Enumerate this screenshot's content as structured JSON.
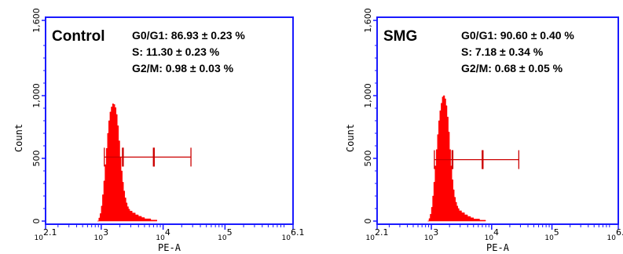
{
  "chart_data": [
    {
      "type": "histogram",
      "panel_label": "Control",
      "stats": [
        "G0/G1: 86.93 ± 0.23 %",
        "S: 11.30 ± 0.23 %",
        "G2/M: 0.98 ± 0.03 %"
      ],
      "xlabel": "PE-A",
      "ylabel": "Count",
      "x_scale": "log",
      "xlim": [
        2.1,
        6.1
      ],
      "ylim": [
        0,
        1600
      ],
      "y_ticks": [
        "0",
        "500",
        "1,000",
        "1,600"
      ],
      "x_ticks": [
        {
          "value": 2.1,
          "base": "10",
          "exp": "2.1"
        },
        {
          "value": 3,
          "base": "10",
          "exp": "3"
        },
        {
          "value": 4,
          "base": "10",
          "exp": "4"
        },
        {
          "value": 5,
          "base": "10",
          "exp": "5"
        },
        {
          "value": 6.1,
          "base": "10",
          "exp": "6.1"
        }
      ],
      "histogram": {
        "x": [
          2.94,
          2.96,
          2.98,
          3.0,
          3.02,
          3.04,
          3.06,
          3.08,
          3.1,
          3.12,
          3.14,
          3.16,
          3.18,
          3.2,
          3.22,
          3.24,
          3.26,
          3.28,
          3.3,
          3.32,
          3.34,
          3.36,
          3.38,
          3.4,
          3.42,
          3.44,
          3.46,
          3.5,
          3.55,
          3.6,
          3.65,
          3.7,
          3.8,
          3.9
        ],
        "counts": [
          0,
          25,
          60,
          120,
          210,
          320,
          450,
          580,
          700,
          800,
          870,
          910,
          935,
          930,
          905,
          850,
          760,
          640,
          510,
          400,
          310,
          240,
          185,
          145,
          115,
          95,
          80,
          65,
          50,
          38,
          28,
          18,
          8,
          0
        ]
      },
      "gates": [
        {
          "name": "G0/G1",
          "x_start": 3.05,
          "x_end": 3.35
        },
        {
          "name": "S",
          "x_start": 3.35,
          "x_end": 3.85
        },
        {
          "name": "G2/M",
          "x_start": 3.85,
          "x_end": 4.45
        }
      ],
      "gate_y": 510,
      "colors": {
        "frame": "#1a1aff",
        "fill": "#ff0000",
        "gate": "#cc0000"
      }
    },
    {
      "type": "histogram",
      "panel_label": "SMG",
      "stats": [
        "G0/G1: 90.60 ± 0.40 %",
        "S: 7.18 ± 0.34 %",
        "G2/M: 0.68 ± 0.05 %"
      ],
      "xlabel": "PE-A",
      "ylabel": "Count",
      "x_scale": "log",
      "xlim": [
        2.1,
        6.1
      ],
      "ylim": [
        0,
        1600
      ],
      "y_ticks": [
        "0",
        "500",
        "1,000",
        "1,600"
      ],
      "x_ticks": [
        {
          "value": 2.1,
          "base": "10",
          "exp": "2.1"
        },
        {
          "value": 3,
          "base": "10",
          "exp": "3"
        },
        {
          "value": 4,
          "base": "10",
          "exp": "4"
        },
        {
          "value": 5,
          "base": "10",
          "exp": "5"
        },
        {
          "value": 6.1,
          "base": "10",
          "exp": "6.1"
        }
      ],
      "histogram": {
        "x": [
          2.94,
          2.96,
          2.98,
          3.0,
          3.02,
          3.04,
          3.06,
          3.08,
          3.1,
          3.12,
          3.14,
          3.16,
          3.18,
          3.2,
          3.22,
          3.24,
          3.26,
          3.28,
          3.3,
          3.32,
          3.34,
          3.36,
          3.38,
          3.4,
          3.42,
          3.44,
          3.46,
          3.5,
          3.55,
          3.6,
          3.65,
          3.7,
          3.8,
          3.9
        ],
        "counts": [
          0,
          20,
          55,
          110,
          200,
          310,
          440,
          570,
          690,
          800,
          880,
          940,
          990,
          1000,
          975,
          920,
          830,
          710,
          570,
          440,
          330,
          250,
          190,
          150,
          120,
          100,
          82,
          66,
          50,
          37,
          26,
          16,
          7,
          0
        ]
      },
      "gates": [
        {
          "name": "G0/G1",
          "x_start": 3.05,
          "x_end": 3.35
        },
        {
          "name": "S",
          "x_start": 3.35,
          "x_end": 3.85
        },
        {
          "name": "G2/M",
          "x_start": 3.85,
          "x_end": 4.45
        }
      ],
      "gate_y": 490,
      "colors": {
        "frame": "#1a1aff",
        "fill": "#ff0000",
        "gate": "#cc0000"
      }
    }
  ]
}
